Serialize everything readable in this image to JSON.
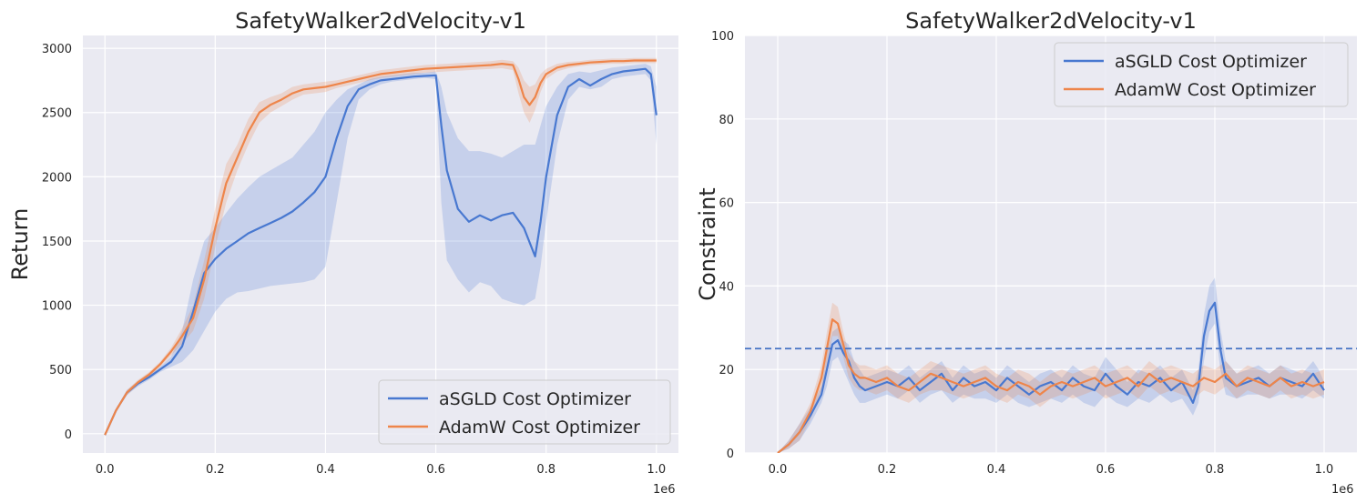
{
  "colors": {
    "background": "#eaeaf2",
    "grid": "#ffffff",
    "asgld": "#4878d0",
    "adamw": "#ee854a",
    "threshold": "#4472c4"
  },
  "chart_data": [
    {
      "type": "line",
      "title": "SafetyWalker2dVelocity-v1",
      "xlabel": "",
      "ylabel": "Return",
      "x_offset_label": "1e6",
      "xlim": [
        -0.04,
        1.04
      ],
      "ylim": [
        -150,
        3100
      ],
      "xticks": [
        0.0,
        0.2,
        0.4,
        0.6,
        0.8,
        1.0
      ],
      "xtick_labels": [
        "0.0",
        "0.2",
        "0.4",
        "0.6",
        "0.8",
        "1.0"
      ],
      "yticks": [
        0,
        500,
        1000,
        1500,
        2000,
        2500,
        3000
      ],
      "ytick_labels": [
        "0",
        "500",
        "1000",
        "1500",
        "2000",
        "2500",
        "3000"
      ],
      "legend_position": "lower-right",
      "series": [
        {
          "name": "aSGLD Cost Optimizer",
          "color": "#4878d0",
          "x": [
            0.0,
            0.02,
            0.04,
            0.06,
            0.08,
            0.1,
            0.12,
            0.14,
            0.16,
            0.18,
            0.2,
            0.22,
            0.24,
            0.26,
            0.28,
            0.3,
            0.32,
            0.34,
            0.36,
            0.38,
            0.4,
            0.42,
            0.44,
            0.46,
            0.48,
            0.5,
            0.52,
            0.54,
            0.56,
            0.58,
            0.6,
            0.61,
            0.62,
            0.64,
            0.66,
            0.68,
            0.7,
            0.72,
            0.74,
            0.76,
            0.78,
            0.79,
            0.8,
            0.82,
            0.84,
            0.86,
            0.88,
            0.9,
            0.92,
            0.94,
            0.96,
            0.98,
            0.99,
            1.0
          ],
          "y": [
            -10,
            180,
            320,
            390,
            440,
            500,
            560,
            680,
            950,
            1250,
            1360,
            1440,
            1500,
            1560,
            1600,
            1640,
            1680,
            1730,
            1800,
            1880,
            2000,
            2300,
            2550,
            2680,
            2720,
            2750,
            2760,
            2770,
            2780,
            2785,
            2790,
            2400,
            2050,
            1750,
            1650,
            1700,
            1660,
            1700,
            1720,
            1600,
            1380,
            1650,
            2000,
            2480,
            2700,
            2760,
            2710,
            2760,
            2800,
            2820,
            2830,
            2840,
            2800,
            2480
          ],
          "band_low": [
            -20,
            170,
            300,
            370,
            420,
            480,
            520,
            560,
            650,
            800,
            950,
            1050,
            1100,
            1110,
            1130,
            1150,
            1160,
            1170,
            1180,
            1200,
            1300,
            1800,
            2300,
            2600,
            2680,
            2720,
            2740,
            2750,
            2760,
            2770,
            2760,
            1800,
            1350,
            1200,
            1100,
            1180,
            1150,
            1050,
            1020,
            1000,
            1050,
            1300,
            1650,
            2250,
            2600,
            2700,
            2680,
            2700,
            2760,
            2780,
            2790,
            2800,
            2750,
            2250
          ],
          "band_high": [
            0,
            190,
            340,
            410,
            460,
            520,
            600,
            800,
            1200,
            1500,
            1600,
            1720,
            1830,
            1920,
            2000,
            2050,
            2100,
            2150,
            2250,
            2350,
            2500,
            2600,
            2680,
            2720,
            2760,
            2780,
            2790,
            2800,
            2810,
            2810,
            2820,
            2700,
            2500,
            2300,
            2200,
            2200,
            2180,
            2150,
            2200,
            2250,
            2250,
            2400,
            2550,
            2700,
            2800,
            2820,
            2810,
            2830,
            2850,
            2860,
            2870,
            2880,
            2860,
            2700
          ]
        },
        {
          "name": "AdamW Cost Optimizer",
          "color": "#ee854a",
          "x": [
            0.0,
            0.02,
            0.04,
            0.06,
            0.08,
            0.1,
            0.12,
            0.14,
            0.16,
            0.18,
            0.2,
            0.22,
            0.24,
            0.26,
            0.28,
            0.3,
            0.32,
            0.34,
            0.36,
            0.38,
            0.4,
            0.42,
            0.44,
            0.46,
            0.48,
            0.5,
            0.52,
            0.54,
            0.56,
            0.58,
            0.6,
            0.62,
            0.64,
            0.66,
            0.68,
            0.7,
            0.72,
            0.74,
            0.75,
            0.76,
            0.77,
            0.78,
            0.79,
            0.8,
            0.82,
            0.84,
            0.86,
            0.88,
            0.9,
            0.92,
            0.94,
            0.96,
            0.98,
            1.0
          ],
          "y": [
            -10,
            180,
            320,
            400,
            460,
            540,
            640,
            760,
            900,
            1200,
            1600,
            1950,
            2150,
            2350,
            2500,
            2560,
            2600,
            2650,
            2680,
            2690,
            2700,
            2720,
            2740,
            2760,
            2780,
            2800,
            2810,
            2820,
            2830,
            2840,
            2845,
            2850,
            2855,
            2860,
            2865,
            2870,
            2880,
            2870,
            2760,
            2620,
            2560,
            2620,
            2730,
            2800,
            2850,
            2870,
            2880,
            2890,
            2895,
            2900,
            2900,
            2905,
            2905,
            2905
          ],
          "band_low": [
            -20,
            170,
            300,
            380,
            440,
            520,
            610,
            700,
            800,
            1050,
            1450,
            1800,
            2050,
            2250,
            2420,
            2500,
            2550,
            2600,
            2640,
            2650,
            2660,
            2690,
            2710,
            2730,
            2750,
            2770,
            2780,
            2790,
            2800,
            2810,
            2815,
            2820,
            2825,
            2830,
            2835,
            2840,
            2845,
            2830,
            2650,
            2500,
            2420,
            2520,
            2660,
            2760,
            2820,
            2845,
            2860,
            2870,
            2875,
            2880,
            2880,
            2885,
            2885,
            2885
          ],
          "band_high": [
            0,
            190,
            340,
            420,
            480,
            560,
            670,
            820,
            1000,
            1350,
            1750,
            2100,
            2250,
            2450,
            2580,
            2620,
            2650,
            2700,
            2720,
            2730,
            2740,
            2750,
            2770,
            2790,
            2810,
            2830,
            2840,
            2850,
            2860,
            2870,
            2875,
            2880,
            2885,
            2890,
            2895,
            2900,
            2910,
            2900,
            2850,
            2750,
            2700,
            2720,
            2800,
            2840,
            2880,
            2895,
            2900,
            2910,
            2915,
            2920,
            2920,
            2925,
            2925,
            2925
          ]
        }
      ]
    },
    {
      "type": "line",
      "title": "SafetyWalker2dVelocity-v1",
      "xlabel": "",
      "ylabel": "Constraint",
      "x_offset_label": "1e6",
      "xlim": [
        -0.06,
        1.06
      ],
      "ylim": [
        0,
        100
      ],
      "xticks": [
        0.0,
        0.2,
        0.4,
        0.6,
        0.8,
        1.0
      ],
      "xtick_labels": [
        "0.0",
        "0.2",
        "0.4",
        "0.6",
        "0.8",
        "1.0"
      ],
      "yticks": [
        0,
        20,
        40,
        60,
        80,
        100
      ],
      "ytick_labels": [
        "0",
        "20",
        "40",
        "60",
        "80",
        "100"
      ],
      "threshold": 25,
      "legend_position": "upper-right",
      "series": [
        {
          "name": "aSGLD Cost Optimizer",
          "color": "#4878d0",
          "x": [
            0.0,
            0.02,
            0.04,
            0.06,
            0.08,
            0.09,
            0.1,
            0.11,
            0.12,
            0.13,
            0.14,
            0.15,
            0.16,
            0.18,
            0.2,
            0.22,
            0.24,
            0.26,
            0.28,
            0.3,
            0.32,
            0.34,
            0.36,
            0.38,
            0.4,
            0.42,
            0.44,
            0.46,
            0.48,
            0.5,
            0.52,
            0.54,
            0.56,
            0.58,
            0.6,
            0.62,
            0.64,
            0.66,
            0.68,
            0.7,
            0.72,
            0.74,
            0.76,
            0.77,
            0.78,
            0.79,
            0.8,
            0.81,
            0.82,
            0.84,
            0.86,
            0.88,
            0.9,
            0.92,
            0.94,
            0.96,
            0.98,
            0.99,
            1.0
          ],
          "y": [
            0,
            2,
            5,
            9,
            14,
            20,
            26,
            27,
            24,
            22,
            18,
            16,
            15,
            16,
            17,
            16,
            18,
            15,
            17,
            19,
            15,
            18,
            16,
            17,
            15,
            18,
            16,
            14,
            16,
            17,
            15,
            18,
            16,
            15,
            19,
            16,
            14,
            17,
            16,
            18,
            15,
            17,
            12,
            16,
            28,
            34,
            36,
            25,
            18,
            16,
            17,
            18,
            16,
            18,
            17,
            16,
            19,
            17,
            15
          ],
          "band_low": [
            0,
            1,
            3,
            7,
            12,
            16,
            22,
            23,
            20,
            17,
            14,
            12,
            12,
            13,
            14,
            13,
            15,
            12,
            14,
            15,
            12,
            14,
            13,
            13,
            12,
            14,
            12,
            11,
            12,
            13,
            12,
            14,
            12,
            11,
            14,
            12,
            11,
            13,
            12,
            14,
            12,
            13,
            9,
            12,
            22,
            29,
            31,
            20,
            14,
            13,
            14,
            14,
            13,
            14,
            14,
            13,
            15,
            14,
            13
          ],
          "band_high": [
            0,
            3,
            7,
            11,
            16,
            24,
            29,
            30,
            27,
            26,
            22,
            20,
            18,
            19,
            20,
            19,
            21,
            18,
            20,
            22,
            18,
            21,
            19,
            20,
            18,
            21,
            19,
            17,
            19,
            20,
            18,
            21,
            19,
            18,
            23,
            20,
            17,
            20,
            19,
            21,
            18,
            20,
            15,
            20,
            33,
            40,
            42,
            30,
            22,
            19,
            20,
            21,
            19,
            21,
            20,
            19,
            22,
            20,
            17
          ]
        },
        {
          "name": "AdamW Cost Optimizer",
          "color": "#ee854a",
          "x": [
            0.0,
            0.02,
            0.04,
            0.06,
            0.08,
            0.09,
            0.1,
            0.11,
            0.12,
            0.13,
            0.14,
            0.15,
            0.16,
            0.18,
            0.2,
            0.22,
            0.24,
            0.26,
            0.28,
            0.3,
            0.32,
            0.34,
            0.36,
            0.38,
            0.4,
            0.42,
            0.44,
            0.46,
            0.48,
            0.5,
            0.52,
            0.54,
            0.56,
            0.58,
            0.6,
            0.62,
            0.64,
            0.66,
            0.68,
            0.7,
            0.72,
            0.74,
            0.76,
            0.78,
            0.8,
            0.82,
            0.84,
            0.86,
            0.88,
            0.9,
            0.92,
            0.94,
            0.96,
            0.98,
            1.0
          ],
          "y": [
            0,
            2,
            5,
            10,
            18,
            25,
            32,
            31,
            26,
            21,
            19,
            18,
            18,
            17,
            18,
            16,
            15,
            17,
            19,
            18,
            17,
            16,
            17,
            18,
            16,
            15,
            17,
            16,
            14,
            16,
            17,
            16,
            17,
            18,
            16,
            17,
            18,
            16,
            19,
            17,
            18,
            17,
            16,
            18,
            17,
            19,
            16,
            18,
            17,
            16,
            18,
            16,
            17,
            16,
            17
          ],
          "band_low": [
            0,
            1,
            3,
            8,
            15,
            21,
            28,
            28,
            23,
            18,
            16,
            15,
            15,
            14,
            15,
            13,
            12,
            14,
            15,
            15,
            14,
            13,
            14,
            15,
            13,
            12,
            14,
            13,
            11,
            13,
            14,
            13,
            14,
            15,
            13,
            14,
            15,
            13,
            16,
            14,
            15,
            14,
            13,
            15,
            14,
            16,
            13,
            15,
            14,
            13,
            15,
            13,
            14,
            13,
            14
          ],
          "band_high": [
            0,
            3,
            7,
            12,
            21,
            29,
            36,
            35,
            29,
            24,
            22,
            21,
            21,
            20,
            21,
            19,
            18,
            20,
            22,
            21,
            20,
            19,
            20,
            21,
            19,
            18,
            20,
            19,
            17,
            19,
            20,
            19,
            20,
            21,
            19,
            20,
            21,
            19,
            22,
            20,
            21,
            20,
            19,
            21,
            20,
            22,
            19,
            21,
            20,
            19,
            21,
            19,
            20,
            19,
            20
          ]
        }
      ]
    }
  ]
}
